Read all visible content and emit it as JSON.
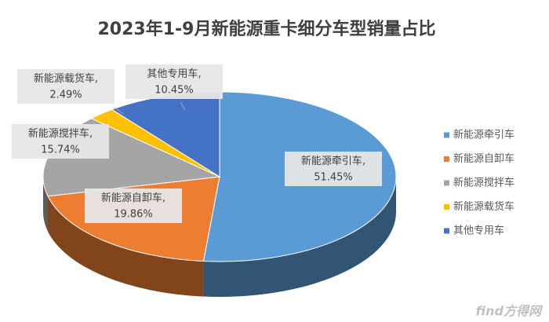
{
  "chart_data": {
    "type": "pie3d",
    "title": "2023年1-9月新能源重卡细分车型销量占比",
    "categories": [
      "新能源牵引车",
      "新能源自卸车",
      "新能源搅拌车",
      "新能源载货车",
      "其他专用车"
    ],
    "values": [
      51.45,
      19.86,
      15.74,
      2.49,
      10.45
    ],
    "value_labels": [
      "51.45%",
      "19.86%",
      "15.74%",
      "2.49%",
      "10.45%"
    ],
    "label_separator": ",",
    "colors": [
      "#5b9bd5",
      "#ed7d31",
      "#a5a5a5",
      "#ffc000",
      "#4472c4"
    ],
    "legend": "right"
  },
  "watermark": "find方得网"
}
